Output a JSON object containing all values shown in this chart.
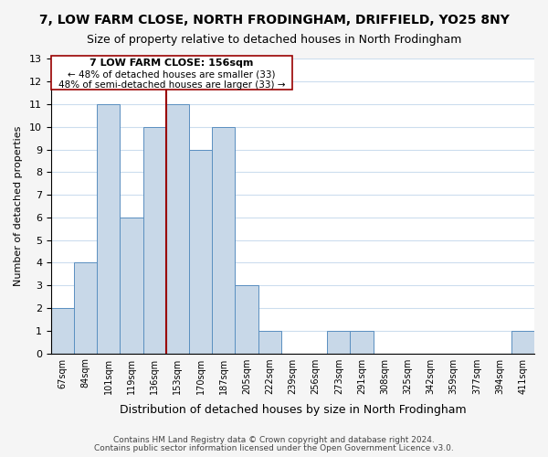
{
  "title1": "7, LOW FARM CLOSE, NORTH FRODINGHAM, DRIFFIELD, YO25 8NY",
  "title2": "Size of property relative to detached houses in North Frodingham",
  "xlabel": "Distribution of detached houses by size in North Frodingham",
  "ylabel": "Number of detached properties",
  "footer1": "Contains HM Land Registry data © Crown copyright and database right 2024.",
  "footer2": "Contains public sector information licensed under the Open Government Licence v3.0.",
  "annotation_line1": "7 LOW FARM CLOSE: 156sqm",
  "annotation_line2": "← 48% of detached houses are smaller (33)",
  "annotation_line3": "48% of semi-detached houses are larger (33) →",
  "bar_color": "#c8d8e8",
  "bar_edge_color": "#5a8fc0",
  "ref_line_color": "#990000",
  "ref_line_x": 5.0,
  "ylim": [
    0,
    13
  ],
  "yticks": [
    0,
    1,
    2,
    3,
    4,
    5,
    6,
    7,
    8,
    9,
    10,
    11,
    12,
    13
  ],
  "bin_labels": [
    "67sqm",
    "84sqm",
    "101sqm",
    "119sqm",
    "136sqm",
    "153sqm",
    "170sqm",
    "187sqm",
    "205sqm",
    "222sqm",
    "239sqm",
    "256sqm",
    "273sqm",
    "291sqm",
    "308sqm",
    "325sqm",
    "342sqm",
    "359sqm",
    "377sqm",
    "394sqm",
    "411sqm"
  ],
  "bar_heights": [
    2,
    4,
    11,
    6,
    10,
    11,
    9,
    10,
    3,
    1,
    0,
    0,
    1,
    1,
    0,
    0,
    0,
    0,
    0,
    0,
    1
  ],
  "background_color": "#f5f5f5",
  "plot_bg_color": "#ffffff",
  "grid_color": "#ccddee"
}
